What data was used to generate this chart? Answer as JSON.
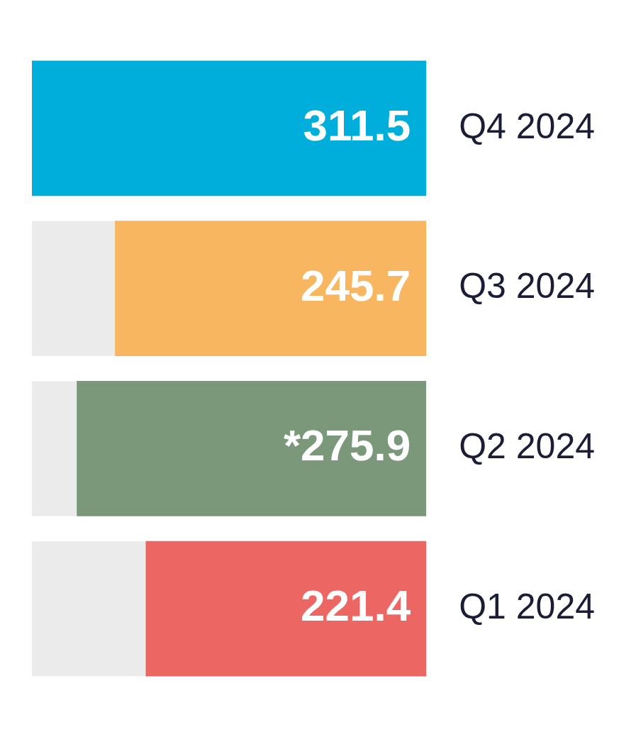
{
  "chart_data": {
    "type": "bar",
    "orientation": "horizontal",
    "categories": [
      "Q4 2024",
      "Q3 2024",
      "Q2 2024",
      "Q1 2024"
    ],
    "values": [
      311.5,
      245.7,
      275.9,
      221.4
    ],
    "colors": [
      "#00aedb",
      "#f8b660",
      "#7b997a",
      "#ec6663"
    ],
    "value_labels": [
      "311.5",
      "245.7",
      "*275.9",
      "221.4"
    ],
    "xlim": [
      311.5,
      0
    ],
    "tick_labels": "y"
  }
}
